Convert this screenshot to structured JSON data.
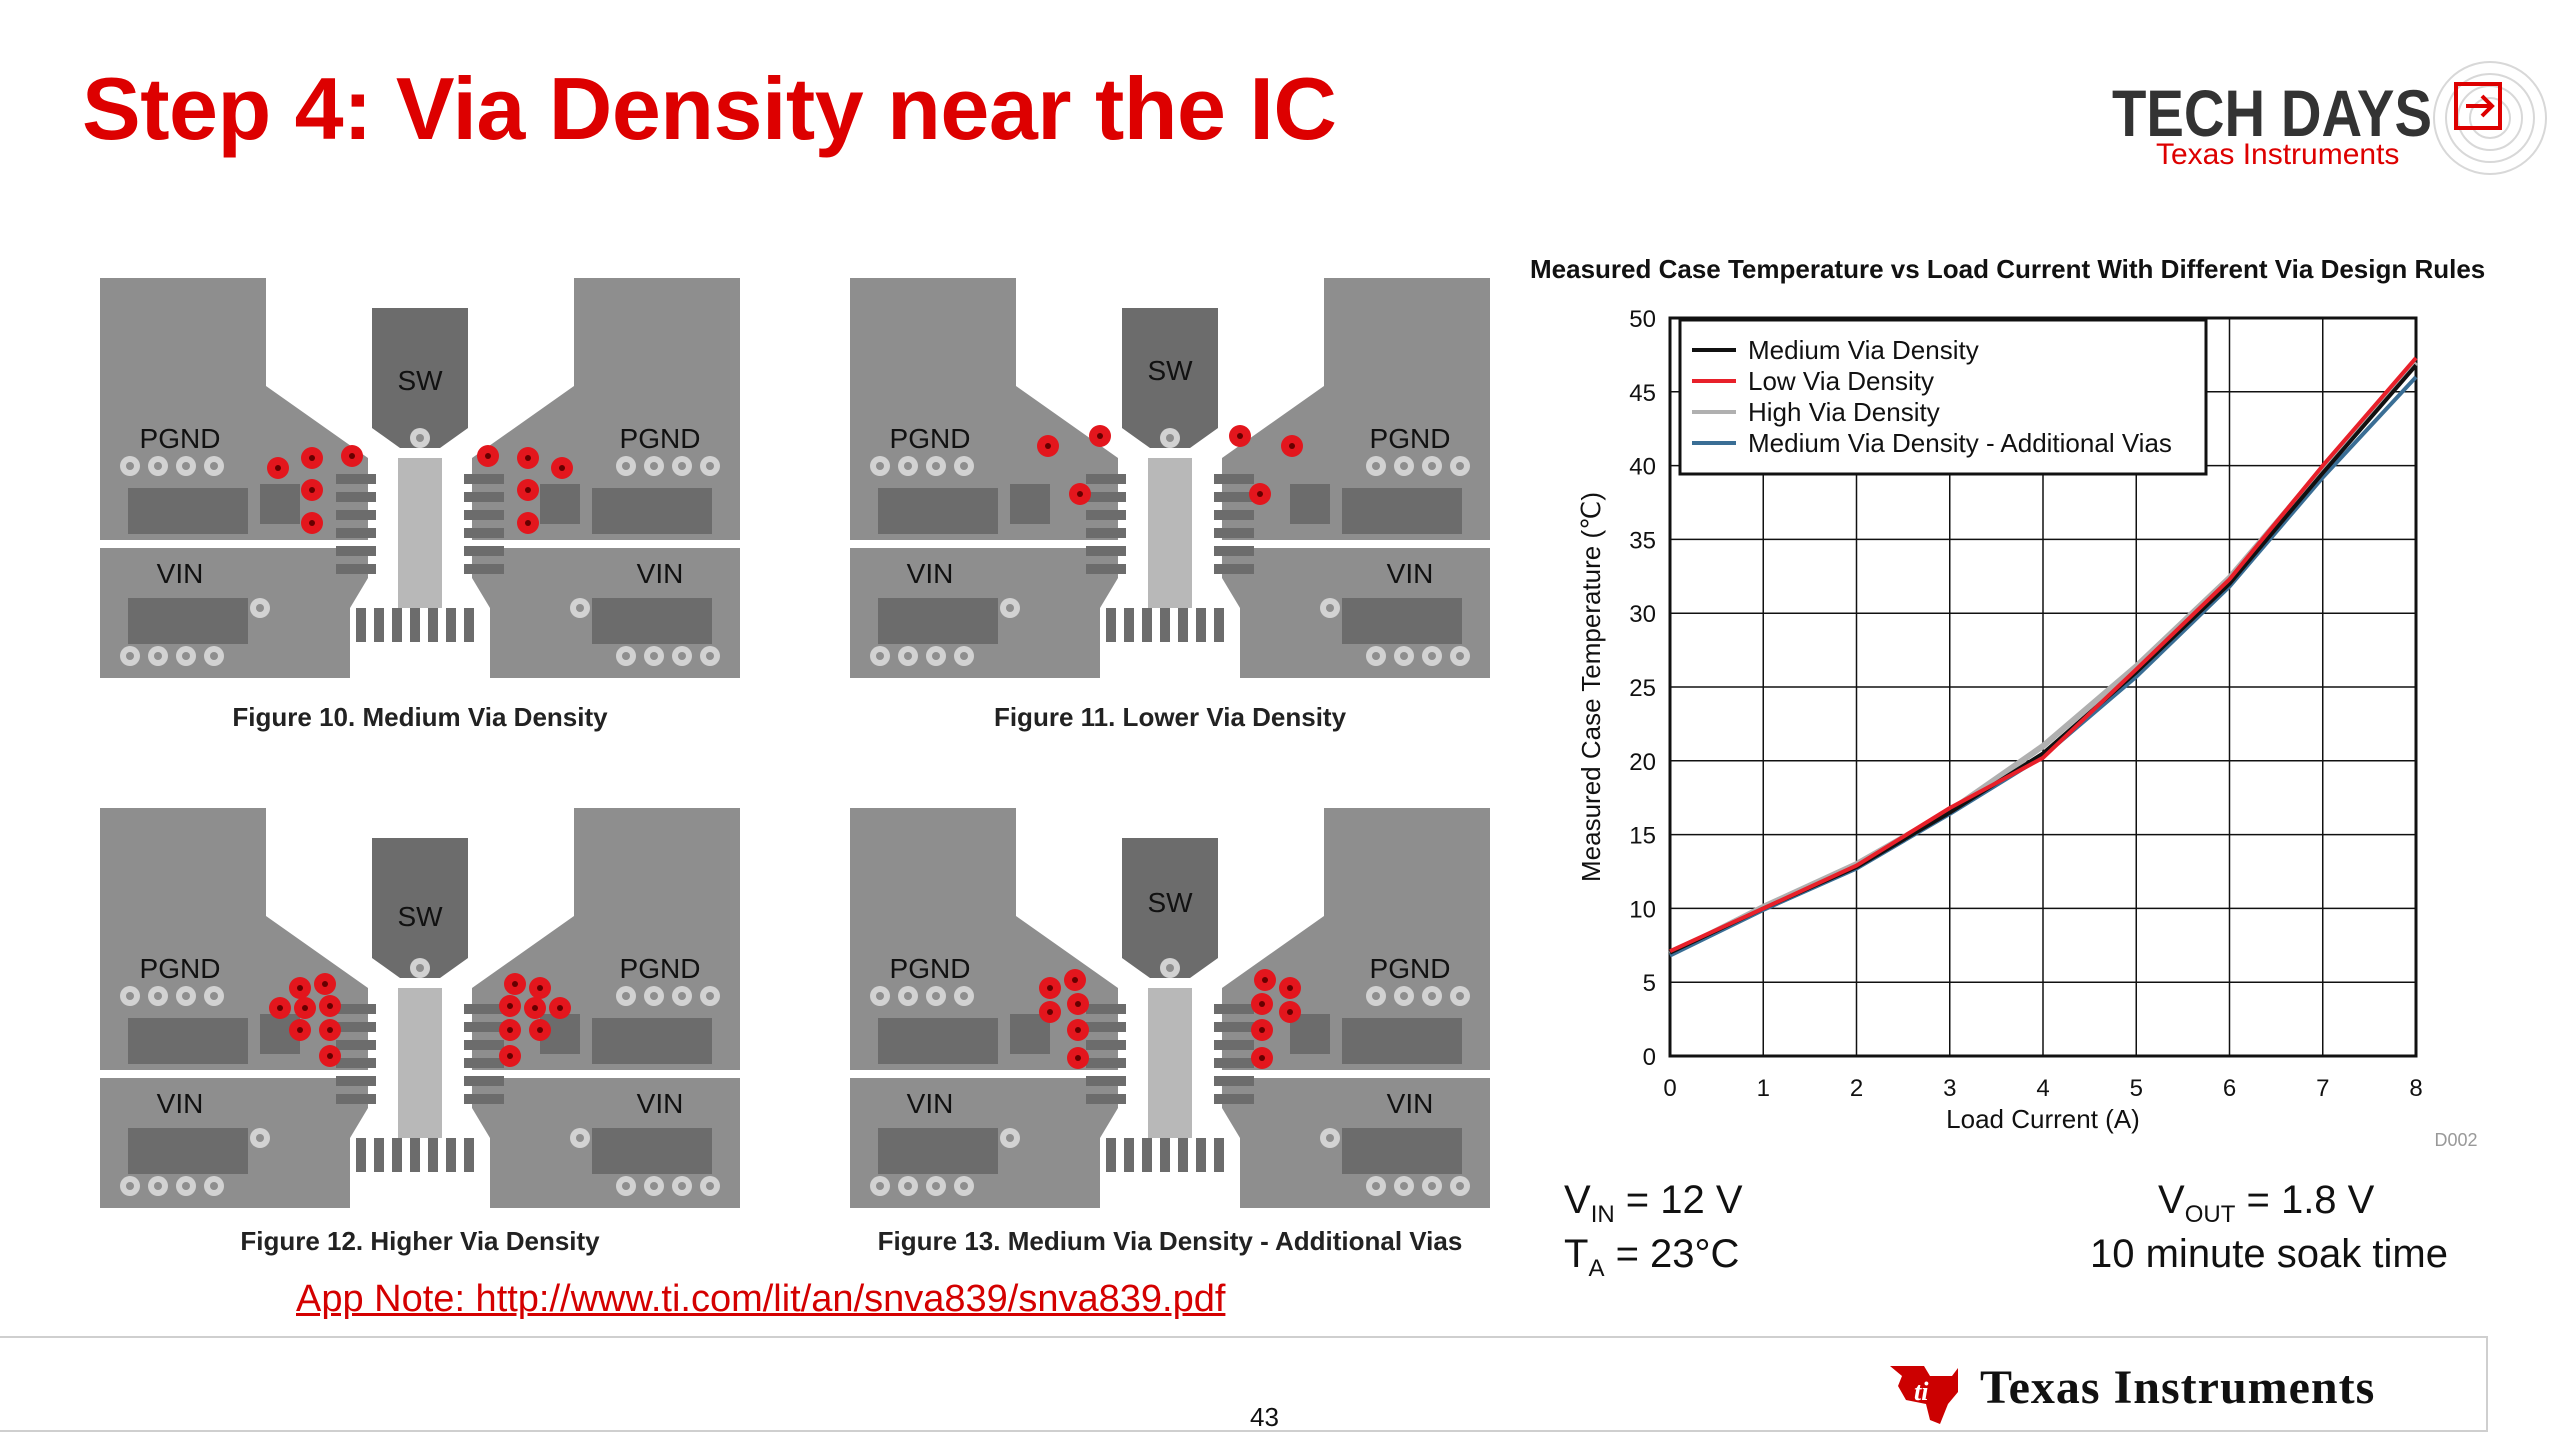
{
  "slide": {
    "title": "Step 4: Via Density near the IC",
    "page_number": "43"
  },
  "branding": {
    "event_logo_text": "TECH DAYS",
    "event_logo_subtext": "Texas Instruments",
    "footer_company": "Texas Instruments",
    "brand_color": "#dd0000"
  },
  "figures": [
    {
      "caption": "Figure 10. Medium Via Density",
      "labels": {
        "sw": "SW",
        "pgnd": "PGND",
        "vin": "VIN"
      }
    },
    {
      "caption": "Figure 11. Lower Via Density",
      "labels": {
        "sw": "SW",
        "pgnd": "PGND",
        "vin": "VIN"
      }
    },
    {
      "caption": "Figure 12. Higher Via Density",
      "labels": {
        "sw": "SW",
        "pgnd": "PGND",
        "vin": "VIN"
      }
    },
    {
      "caption": "Figure 13. Medium Via Density - Additional Vias",
      "labels": {
        "sw": "SW",
        "pgnd": "PGND",
        "vin": "VIN"
      }
    }
  ],
  "chart_data": {
    "type": "line",
    "title": "Measured Case Temperature vs Load Current With Different Via Design Rules",
    "xlabel": "Load Current (A)",
    "ylabel": "Measured Case Temperature (℃)",
    "xlim": [
      0,
      8
    ],
    "ylim": [
      0,
      50
    ],
    "xticks": [
      0,
      1,
      2,
      3,
      4,
      5,
      6,
      7,
      8
    ],
    "yticks": [
      0,
      5,
      10,
      15,
      20,
      25,
      30,
      35,
      40,
      45,
      50
    ],
    "grid": true,
    "legend_position": "top-left",
    "figure_id": "D002",
    "x": [
      0,
      1,
      2,
      3,
      4,
      5,
      6,
      7,
      8
    ],
    "series": [
      {
        "name": "Medium Via Density",
        "color": "#111111",
        "values": [
          7.0,
          10.0,
          12.8,
          16.5,
          20.5,
          26.0,
          32.0,
          39.5,
          46.8
        ]
      },
      {
        "name": "Low Via Density",
        "color": "#e8202a",
        "values": [
          7.1,
          10.0,
          12.9,
          16.8,
          20.2,
          26.2,
          32.3,
          40.0,
          47.3
        ]
      },
      {
        "name": "High Via Density",
        "color": "#b0b0b0",
        "values": [
          6.9,
          10.1,
          13.0,
          16.6,
          21.0,
          26.4,
          32.4,
          39.8,
          47.0
        ]
      },
      {
        "name": "Medium Via Density - Additional Vias",
        "color": "#3a6e95",
        "values": [
          6.8,
          9.9,
          12.7,
          16.4,
          20.3,
          25.7,
          31.8,
          39.2,
          46.0
        ]
      }
    ]
  },
  "conditions": {
    "vin_main": "V",
    "vin_sub": "IN",
    "vin_val": " = 12 V",
    "ta_main": "T",
    "ta_sub": "A",
    "ta_val": " = 23°C",
    "vout_main": "V",
    "vout_sub": "OUT",
    "vout_val": " = 1.8 V",
    "soak": "10 minute soak time"
  },
  "links": {
    "app_note": "App Note: http://www.ti.com/lit/an/snva839/snva839.pdf"
  }
}
